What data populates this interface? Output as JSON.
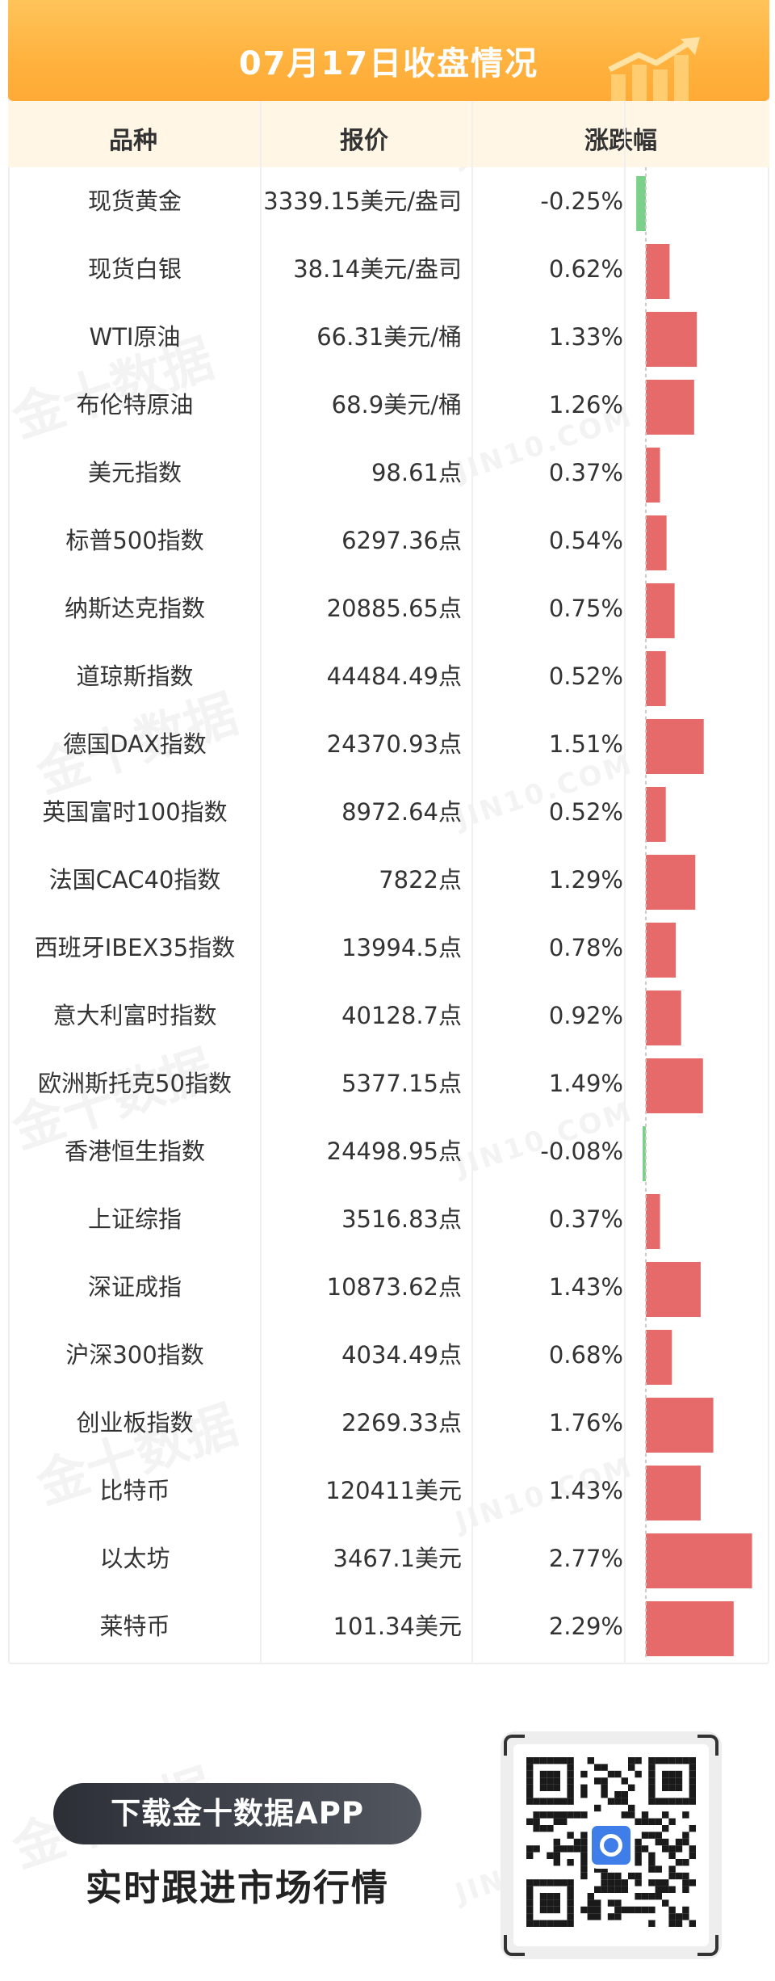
{
  "header": {
    "title": "07月17日收盘情况"
  },
  "columns": {
    "name": "品种",
    "price": "报价",
    "change": "涨跌幅"
  },
  "colors": {
    "up": "#e66a6a",
    "down": "#7bd08a",
    "header_bg": "#ffb23e",
    "column_header_bg": "#fff6e6"
  },
  "watermark": {
    "cn": "金十数据",
    "en": "JIN10.COM"
  },
  "chart_data": {
    "type": "bar",
    "orientation": "horizontal",
    "categories": [
      "现货黄金",
      "现货白银",
      "WTI原油",
      "布伦特原油",
      "美元指数",
      "标普500指数",
      "纳斯达克指数",
      "道琼斯指数",
      "德国DAX指数",
      "英国富时100指数",
      "法国CAC40指数",
      "西班牙IBEX35指数",
      "意大利富时指数",
      "欧洲斯托克50指数",
      "香港恒生指数",
      "上证综指",
      "深证成指",
      "沪深300指数",
      "创业板指数",
      "比特币",
      "以太坊",
      "莱特币"
    ],
    "values": [
      -0.25,
      0.62,
      1.33,
      1.26,
      0.37,
      0.54,
      0.75,
      0.52,
      1.51,
      0.52,
      1.29,
      0.78,
      0.92,
      1.49,
      -0.08,
      0.37,
      1.43,
      0.68,
      1.76,
      1.43,
      2.77,
      2.29
    ],
    "prices": [
      "3339.15美元/盎司",
      "38.14美元/盎司",
      "66.31美元/桶",
      "68.9美元/桶",
      "98.61点",
      "6297.36点",
      "20885.65点",
      "44484.49点",
      "24370.93点",
      "8972.64点",
      "7822点",
      "13994.5点",
      "40128.7点",
      "5377.15点",
      "24498.95点",
      "3516.83点",
      "10873.62点",
      "4034.49点",
      "2269.33点",
      "120411美元",
      "3467.1美元",
      "101.34美元"
    ],
    "change_labels": [
      "-0.25%",
      "0.62%",
      "1.33%",
      "1.26%",
      "0.37%",
      "0.54%",
      "0.75%",
      "0.52%",
      "1.51%",
      "0.52%",
      "1.29%",
      "0.78%",
      "0.92%",
      "1.49%",
      "-0.08%",
      "0.37%",
      "1.43%",
      "0.68%",
      "1.76%",
      "1.43%",
      "2.77%",
      "2.29%"
    ],
    "title": "07月17日收盘情况",
    "xlabel": "",
    "ylabel": ""
  },
  "footer": {
    "download_label": "下载金十数据APP",
    "tagline": "实时跟进市场行情",
    "qr_icon": "qr-code"
  }
}
